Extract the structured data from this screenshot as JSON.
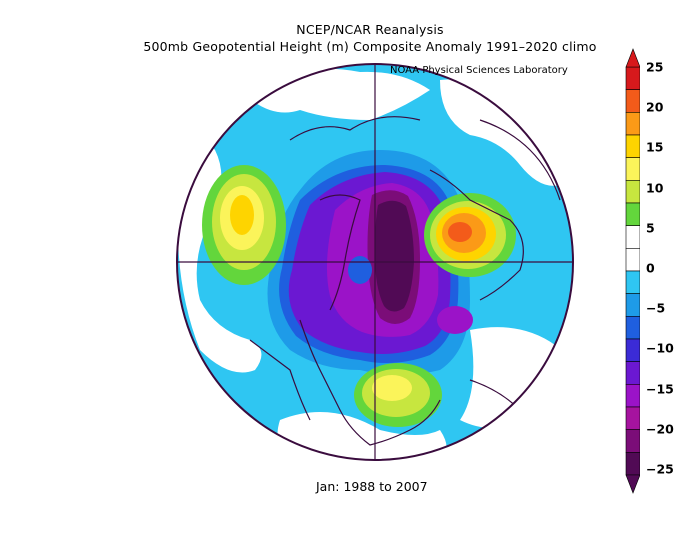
{
  "title_line1": "NCEP/NCAR Reanalysis",
  "title_line2": "500mb Geopotential Height (m) Composite Anomaly 1991–2020 climo",
  "credit": "NOAA Physical Sciences Laboratory",
  "period": "Jan: 1988 to 2007",
  "colorbar": {
    "labels": [
      "25",
      "20",
      "15",
      "10",
      "5",
      "0",
      "−5",
      "−10",
      "−15",
      "−20",
      "−25"
    ],
    "colors": [
      "#d7191c",
      "#f35b1a",
      "#fb9a17",
      "#fed400",
      "#fbf45a",
      "#c7e63f",
      "#63d63c",
      "#ffffff",
      "#ffffff",
      "#2fc6f2",
      "#1e9be8",
      "#1f5fdf",
      "#3b2bd6",
      "#6b18d2",
      "#9b13c8",
      "#a6139f",
      "#7b0d78",
      "#510a55"
    ]
  },
  "map": {
    "projection": "north-polar-stereographic",
    "features": [
      {
        "name": "positive-anomaly-pacific",
        "max": 17
      },
      {
        "name": "positive-anomaly-europe",
        "max": 24
      },
      {
        "name": "positive-anomaly-eastern-us",
        "max": 12
      },
      {
        "name": "negative-anomaly-arctic",
        "min": -27
      }
    ]
  }
}
